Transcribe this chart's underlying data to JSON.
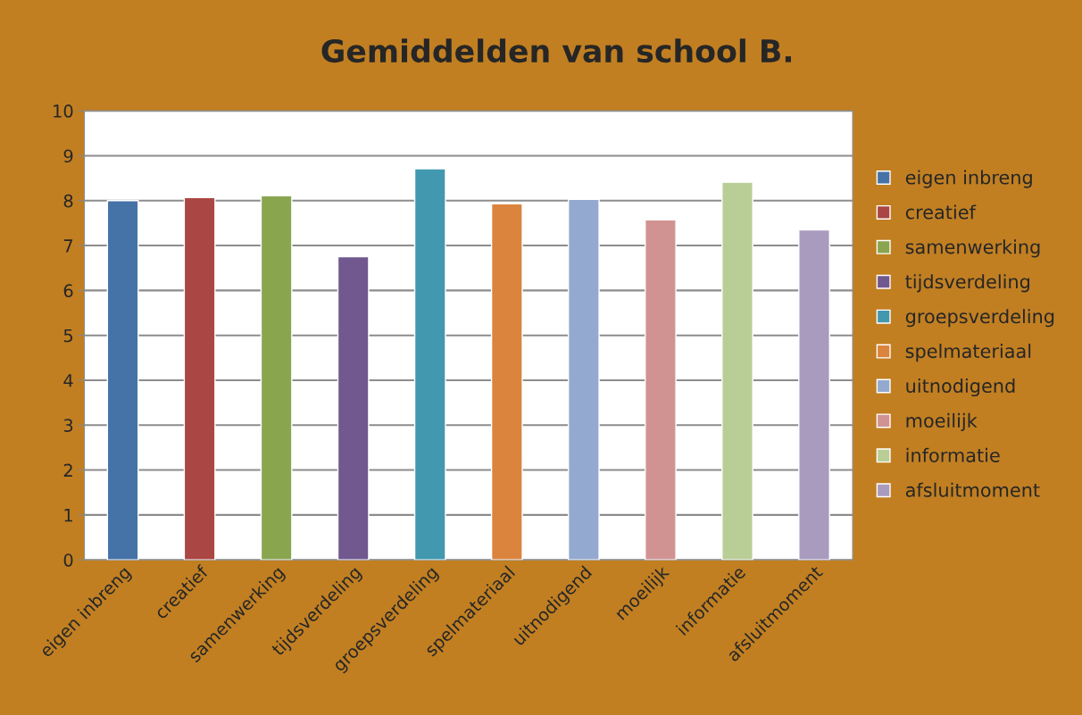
{
  "chart_data": {
    "type": "bar",
    "title": "Gemiddelden van school B.",
    "categories": [
      "eigen inbreng",
      "creatief",
      "samenwerking",
      "tijdsverdeling",
      "groepsverdeling",
      "spelmateriaal",
      "uitnodigend",
      "moeilijk",
      "informatie",
      "afsluitmoment"
    ],
    "series": [
      {
        "name": "eigen inbreng",
        "color": "#4572a7",
        "values": [
          8.0,
          null,
          null,
          null,
          null,
          null,
          null,
          null,
          null,
          null
        ]
      },
      {
        "name": "creatief",
        "color": "#aa4643",
        "values": [
          null,
          8.07,
          null,
          null,
          null,
          null,
          null,
          null,
          null,
          null
        ]
      },
      {
        "name": "samenwerking",
        "color": "#89a54e",
        "values": [
          null,
          null,
          8.11,
          null,
          null,
          null,
          null,
          null,
          null,
          null
        ]
      },
      {
        "name": "tijdsverdeling",
        "color": "#71588f",
        "values": [
          null,
          null,
          null,
          6.75,
          null,
          null,
          null,
          null,
          null,
          null
        ]
      },
      {
        "name": "groepsverdeling",
        "color": "#4198af",
        "values": [
          null,
          null,
          null,
          null,
          8.71,
          null,
          null,
          null,
          null,
          null
        ]
      },
      {
        "name": "spelmateriaal",
        "color": "#db843d",
        "values": [
          null,
          null,
          null,
          null,
          null,
          7.93,
          null,
          null,
          null,
          null
        ]
      },
      {
        "name": "uitnodigend",
        "color": "#93a9cf",
        "values": [
          null,
          null,
          null,
          null,
          null,
          null,
          8.03,
          null,
          null,
          null
        ]
      },
      {
        "name": "moeilijk",
        "color": "#d19392",
        "values": [
          null,
          null,
          null,
          null,
          null,
          null,
          null,
          7.57,
          null,
          null
        ]
      },
      {
        "name": "informatie",
        "color": "#b9cd96",
        "values": [
          null,
          null,
          null,
          null,
          null,
          null,
          null,
          null,
          8.41,
          null
        ]
      },
      {
        "name": "afsluitmoment",
        "color": "#a99bbd",
        "values": [
          null,
          null,
          null,
          null,
          null,
          null,
          null,
          null,
          null,
          7.35
        ]
      }
    ],
    "ylim": [
      0,
      10
    ],
    "yticks": [
      0,
      1,
      2,
      3,
      4,
      5,
      6,
      7,
      8,
      9,
      10
    ],
    "grid": "y",
    "legend": "right"
  }
}
